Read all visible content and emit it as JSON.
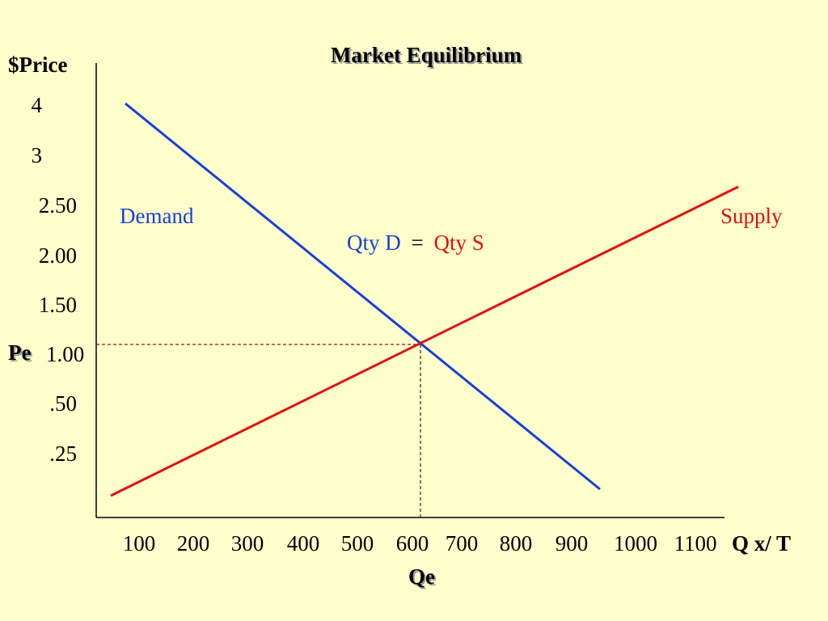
{
  "colors": {
    "background": "#ffffcc",
    "demand": "#1a3fd6",
    "supply": "#e01010",
    "axis": "#000000",
    "guide": "#8b1a1a"
  },
  "chart_data": {
    "type": "line",
    "title": "Market Equilibrium",
    "ylabel": "$Price",
    "xlabel": "Q x/ T",
    "y_ticks": [
      "4",
      "3",
      "2.50",
      "2.00",
      "1.50",
      "1.00",
      ".50",
      ".25"
    ],
    "x_ticks": [
      "100",
      "200",
      "300",
      "400",
      "500",
      "600",
      "700",
      "800",
      "900",
      "1000",
      "1100"
    ],
    "equilibrium": {
      "price_label": "Pe",
      "quantity_label": "Qe",
      "price": 1.0,
      "quantity": 600
    },
    "series": [
      {
        "name": "Demand",
        "color": "#1a3fd6",
        "points": [
          [
            50,
            4
          ],
          [
            600,
            1.0
          ],
          [
            950,
            ".25-"
          ]
        ]
      },
      {
        "name": "Supply",
        "color": "#e01010",
        "points": [
          [
            25,
            ".25-"
          ],
          [
            600,
            1.0
          ],
          [
            1150,
            2.5
          ]
        ]
      }
    ],
    "annotation": {
      "qty_d": "Qty D",
      "equals": "=",
      "qty_s": "Qty S"
    }
  }
}
